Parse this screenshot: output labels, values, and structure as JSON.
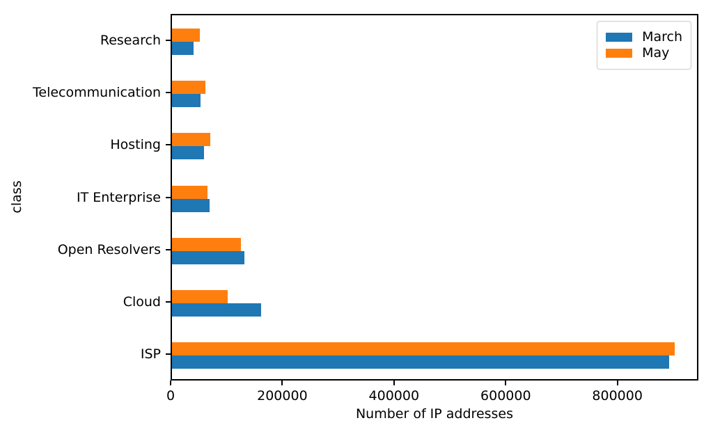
{
  "chart_data": {
    "type": "bar",
    "orientation": "horizontal",
    "title": "",
    "xlabel": "Number of IP addresses",
    "ylabel": "class",
    "categories": [
      "Research",
      "Telecommunication",
      "Hosting",
      "IT Enterprise",
      "Open Resolvers",
      "Cloud",
      "ISP"
    ],
    "category_order_note": "top-to-bottom as displayed",
    "series": [
      {
        "name": "March",
        "color": "#1f77b4",
        "values": [
          38000,
          51000,
          57000,
          67000,
          129000,
          160000,
          890000
        ]
      },
      {
        "name": "May",
        "color": "#ff7f0e",
        "values": [
          50000,
          60000,
          69000,
          64000,
          123000,
          100000,
          900000
        ]
      }
    ],
    "xlim": [
      0,
      945000
    ],
    "xticks": [
      0,
      200000,
      400000,
      600000,
      800000
    ],
    "xtick_labels": [
      "0",
      "200000",
      "400000",
      "600000",
      "800000"
    ],
    "grid": false,
    "legend": {
      "position": "upper-right",
      "entries": [
        "March",
        "May"
      ]
    },
    "colors": {
      "march_blue": "#1f77b4",
      "may_orange": "#ff7f0e",
      "spine": "#000000",
      "background": "#ffffff"
    }
  }
}
